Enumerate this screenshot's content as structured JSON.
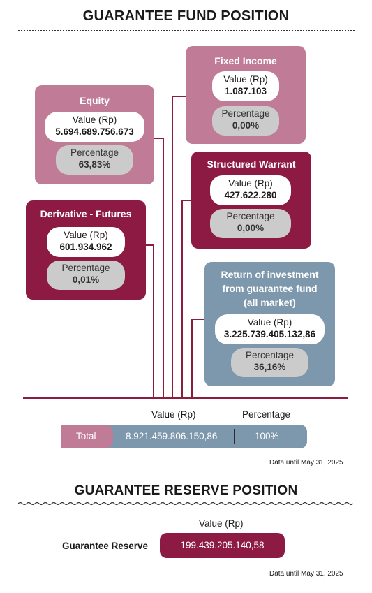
{
  "fund": {
    "title": "GUARANTEE FUND POSITION",
    "equity": {
      "name": "Equity",
      "value_label": "Value (Rp)",
      "value": "5.694.689.756.673",
      "pct_label": "Percentage",
      "pct": "63,83%"
    },
    "fixed_income": {
      "name": "Fixed Income",
      "value_label": "Value (Rp)",
      "value": "1.087.103",
      "pct_label": "Percentage",
      "pct": "0,00%"
    },
    "structured_warrant": {
      "name": "Structured Warrant",
      "value_label": "Value (Rp)",
      "value": "427.622.280",
      "pct_label": "Percentage",
      "pct": "0,00%"
    },
    "derivative_futures": {
      "name": "Derivative - Futures",
      "value_label": "Value (Rp)",
      "value": "601.934.962",
      "pct_label": "Percentage",
      "pct": "0,01%"
    },
    "return_investment": {
      "name_line1": "Return of investment",
      "name_line2": "from guarantee fund",
      "name_line3": "(all market)",
      "value_label": "Value (Rp)",
      "value": "3.225.739.405.132,86",
      "pct_label": "Percentage",
      "pct": "36,16%"
    },
    "total": {
      "value_header": "Value (Rp)",
      "pct_header": "Percentage",
      "label": "Total",
      "value": "8.921.459.806.150,86",
      "pct": "100%"
    },
    "note": "Data until May 31, 2025"
  },
  "reserve": {
    "title": "GUARANTEE RESERVE POSITION",
    "value_header": "Value (Rp)",
    "label": "Guarantee Reserve",
    "value": "199.439.205.140,58",
    "note": "Data until May 31, 2025"
  },
  "colors": {
    "maroon": "#8d1a42",
    "mauve": "#c07c96",
    "steel": "#7d97ad",
    "pill_grey": "#cbcbcb",
    "connector": "#8b1e3f"
  }
}
